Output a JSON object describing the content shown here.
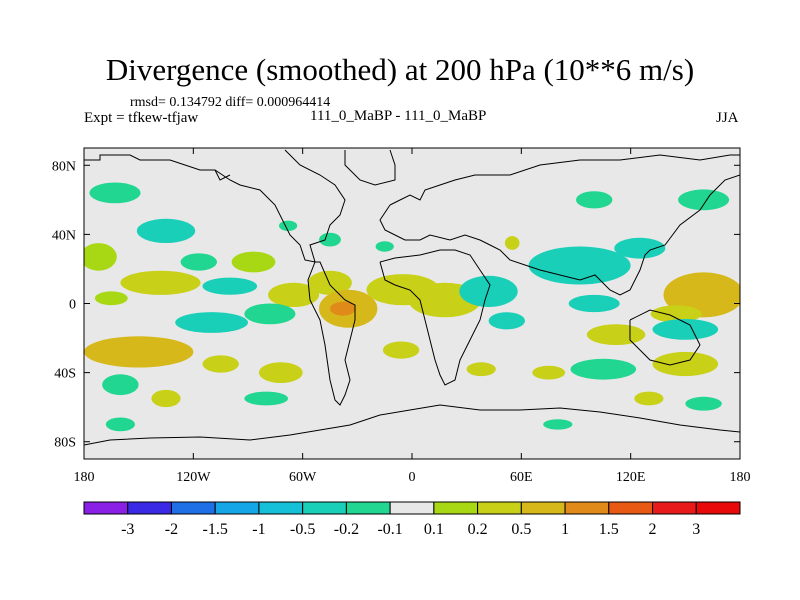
{
  "chart_data": {
    "type": "heatmap",
    "title": "Divergence (smoothed) at 200 hPa (10**6 m/s)",
    "stats_text": "rmsd= 0.134792 diff= 0.000964414",
    "left_label": "Expt = tfkew-tfjaw",
    "center_label": "111_0_MaBP - 111_0_MaBP",
    "right_label": "JJA",
    "xlim": [
      -180,
      180
    ],
    "ylim": [
      -90,
      90
    ],
    "x_ticks": [
      {
        "value": -180,
        "label": "180"
      },
      {
        "value": -120,
        "label": "120W"
      },
      {
        "value": -60,
        "label": "60W"
      },
      {
        "value": 0,
        "label": "0"
      },
      {
        "value": 60,
        "label": "60E"
      },
      {
        "value": 120,
        "label": "120E"
      },
      {
        "value": 180,
        "label": "180"
      }
    ],
    "y_ticks": [
      {
        "value": 80,
        "label": "80N"
      },
      {
        "value": 40,
        "label": "40N"
      },
      {
        "value": 0,
        "label": "0"
      },
      {
        "value": -40,
        "label": "40S"
      },
      {
        "value": -80,
        "label": "80S"
      }
    ],
    "colorbar": {
      "labels": [
        "-3",
        "-2",
        "-1.5",
        "-1",
        "-0.5",
        "-0.2",
        "-0.1",
        "0.1",
        "0.2",
        "0.5",
        "1",
        "1.5",
        "2",
        "3"
      ],
      "colors": [
        "#8a1fe6",
        "#3a2ae6",
        "#1f6fe6",
        "#14a6e6",
        "#16c0d8",
        "#1acfb8",
        "#20d690",
        "#e8e8e8",
        "#a8d814",
        "#c8d018",
        "#d6b81a",
        "#e08a1a",
        "#e85a14",
        "#e81a1a",
        "#e80a0a"
      ]
    },
    "anomalies": [
      {
        "lon": -163,
        "lat": 64,
        "w": 14,
        "h": 6,
        "value": -0.15
      },
      {
        "lon": -135,
        "lat": 42,
        "w": 16,
        "h": 7,
        "value": -0.3
      },
      {
        "lon": -117,
        "lat": 24,
        "w": 10,
        "h": 5,
        "value": -0.15
      },
      {
        "lon": -172,
        "lat": 27,
        "w": 10,
        "h": 8,
        "value": 0.15
      },
      {
        "lon": -165,
        "lat": 3,
        "w": 9,
        "h": 4,
        "value": 0.15
      },
      {
        "lon": -138,
        "lat": 12,
        "w": 22,
        "h": 7,
        "value": 0.3
      },
      {
        "lon": -100,
        "lat": 10,
        "w": 15,
        "h": 5,
        "value": -0.3
      },
      {
        "lon": -87,
        "lat": 24,
        "w": 12,
        "h": 6,
        "value": 0.15
      },
      {
        "lon": -65,
        "lat": 5,
        "w": 14,
        "h": 7,
        "value": 0.3
      },
      {
        "lon": -45,
        "lat": 12,
        "w": 12,
        "h": 7,
        "value": 0.2
      },
      {
        "lon": -110,
        "lat": -11,
        "w": 20,
        "h": 6,
        "value": -0.3
      },
      {
        "lon": -78,
        "lat": -6,
        "w": 14,
        "h": 6,
        "value": -0.2
      },
      {
        "lon": -35,
        "lat": -3,
        "w": 16,
        "h": 11,
        "value": 0.7
      },
      {
        "lon": -38,
        "lat": -3,
        "w": 7,
        "h": 4,
        "value": 1.1
      },
      {
        "lon": -5,
        "lat": 8,
        "w": 20,
        "h": 9,
        "value": 0.35
      },
      {
        "lon": 18,
        "lat": 2,
        "w": 20,
        "h": 10,
        "value": 0.4
      },
      {
        "lon": 42,
        "lat": 7,
        "w": 16,
        "h": 9,
        "value": -0.3
      },
      {
        "lon": 52,
        "lat": -10,
        "w": 10,
        "h": 5,
        "value": -0.3
      },
      {
        "lon": 92,
        "lat": 22,
        "w": 28,
        "h": 11,
        "value": -0.3
      },
      {
        "lon": 160,
        "lat": 5,
        "w": 22,
        "h": 13,
        "value": 0.6
      },
      {
        "lon": 145,
        "lat": -6,
        "w": 14,
        "h": 5,
        "value": 0.4
      },
      {
        "lon": 100,
        "lat": 0,
        "w": 14,
        "h": 5,
        "value": -0.3
      },
      {
        "lon": 112,
        "lat": -18,
        "w": 16,
        "h": 6,
        "value": 0.3
      },
      {
        "lon": 150,
        "lat": -15,
        "w": 18,
        "h": 6,
        "value": -0.3
      },
      {
        "lon": -150,
        "lat": -28,
        "w": 30,
        "h": 9,
        "value": 0.5
      },
      {
        "lon": -148,
        "lat": -29,
        "w": 9,
        "h": 4,
        "value": 0.9
      },
      {
        "lon": -105,
        "lat": -35,
        "w": 10,
        "h": 5,
        "value": 0.3
      },
      {
        "lon": -72,
        "lat": -40,
        "w": 12,
        "h": 6,
        "value": 0.3
      },
      {
        "lon": -6,
        "lat": -27,
        "w": 10,
        "h": 5,
        "value": 0.2
      },
      {
        "lon": 38,
        "lat": -38,
        "w": 8,
        "h": 4,
        "value": 0.2
      },
      {
        "lon": 75,
        "lat": -40,
        "w": 9,
        "h": 4,
        "value": 0.2
      },
      {
        "lon": 105,
        "lat": -38,
        "w": 18,
        "h": 6,
        "value": -0.2
      },
      {
        "lon": 150,
        "lat": -35,
        "w": 18,
        "h": 7,
        "value": 0.3
      },
      {
        "lon": -160,
        "lat": -47,
        "w": 10,
        "h": 6,
        "value": -0.2
      },
      {
        "lon": -135,
        "lat": -55,
        "w": 8,
        "h": 5,
        "value": 0.2
      },
      {
        "lon": -80,
        "lat": -55,
        "w": 12,
        "h": 4,
        "value": -0.2
      },
      {
        "lon": 130,
        "lat": -55,
        "w": 8,
        "h": 4,
        "value": 0.2
      },
      {
        "lon": 160,
        "lat": -58,
        "w": 10,
        "h": 4,
        "value": -0.2
      },
      {
        "lon": -160,
        "lat": -70,
        "w": 8,
        "h": 4,
        "value": -0.2
      },
      {
        "lon": 80,
        "lat": -70,
        "w": 8,
        "h": 3,
        "value": -0.2
      },
      {
        "lon": -68,
        "lat": 45,
        "w": 5,
        "h": 3,
        "value": -0.2
      },
      {
        "lon": -45,
        "lat": 37,
        "w": 6,
        "h": 4,
        "value": -0.2
      },
      {
        "lon": -15,
        "lat": 33,
        "w": 5,
        "h": 3,
        "value": -0.2
      },
      {
        "lon": 55,
        "lat": 35,
        "w": 4,
        "h": 4,
        "value": 0.2
      },
      {
        "lon": 125,
        "lat": 32,
        "w": 14,
        "h": 6,
        "value": -0.3
      },
      {
        "lon": 100,
        "lat": 60,
        "w": 10,
        "h": 5,
        "value": -0.2
      },
      {
        "lon": 160,
        "lat": 60,
        "w": 14,
        "h": 6,
        "value": -0.2
      }
    ]
  }
}
